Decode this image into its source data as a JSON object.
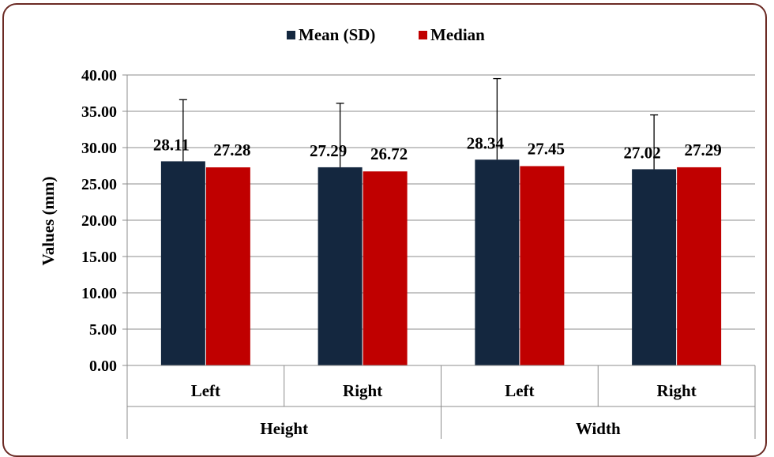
{
  "chart_data": {
    "type": "bar",
    "groups": [
      {
        "label": "Height",
        "categories": [
          "Left",
          "Right"
        ]
      },
      {
        "label": "Width",
        "categories": [
          "Left",
          "Right"
        ]
      }
    ],
    "categories": [
      "Left",
      "Right",
      "Left",
      "Right"
    ],
    "series": [
      {
        "name": "Mean (SD)",
        "color": "#14273f",
        "values": [
          28.11,
          27.29,
          28.34,
          27.02
        ],
        "error_upper": [
          36.6,
          36.1,
          39.5,
          34.5
        ]
      },
      {
        "name": "Median",
        "color": "#c00000",
        "values": [
          27.28,
          26.72,
          27.45,
          27.29
        ]
      }
    ],
    "data_labels": [
      [
        "28.11",
        "27.29",
        "28.34",
        "27.02"
      ],
      [
        "27.28",
        "26.72",
        "27.45",
        "27.29"
      ]
    ],
    "ylabel": "Values (mm)",
    "ylim": [
      0,
      40
    ],
    "yticks": [
      "0.00",
      "5.00",
      "10.00",
      "15.00",
      "20.00",
      "25.00",
      "30.00",
      "35.00",
      "40.00"
    ],
    "grid": true,
    "legend_position": "top"
  }
}
